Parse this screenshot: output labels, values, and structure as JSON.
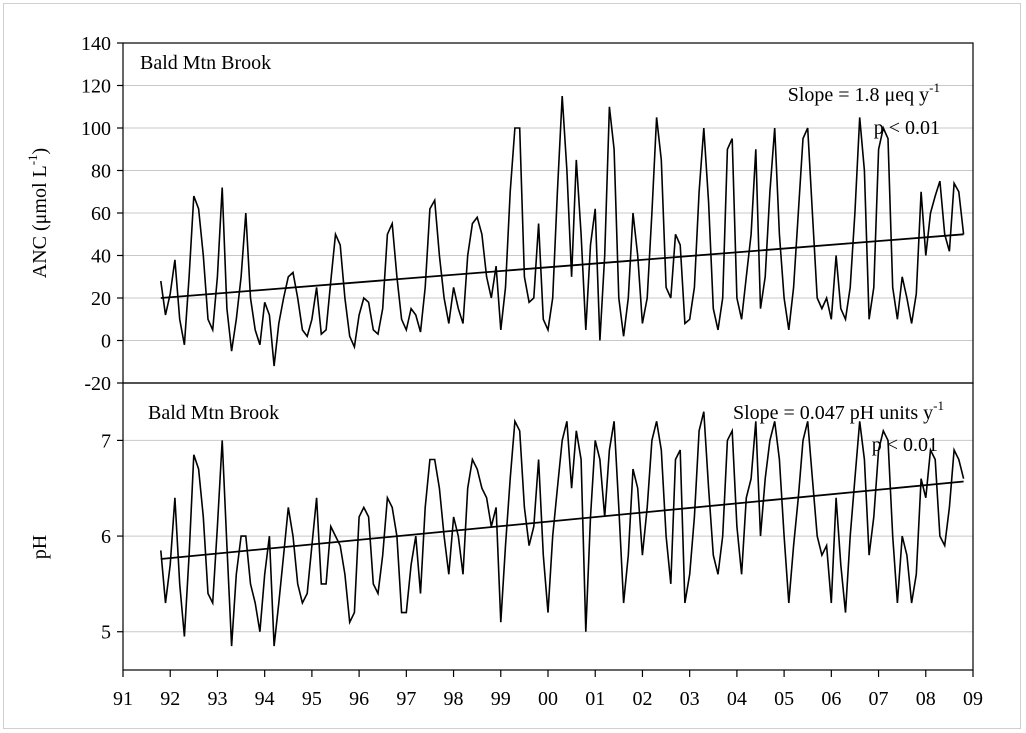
{
  "chart_data": [
    {
      "type": "line",
      "panel": "top",
      "site_label": "Bald Mtn Brook",
      "ylabel_main": "ANC (",
      "ylabel_mu": "μ",
      "ylabel_rest": "mol L",
      "ylabel_sup": "-1",
      "ylabel_end": ")",
      "slope_label": "Slope = 1.8 μeq y",
      "slope_sup": "-1",
      "p_label": "p < 0.01",
      "ylim": [
        -20,
        140
      ],
      "yticks": [
        "-20",
        "0",
        "20",
        "40",
        "60",
        "80",
        "100",
        "120",
        "140"
      ],
      "ytick_values": [
        -20,
        0,
        20,
        40,
        60,
        80,
        100,
        120,
        140
      ],
      "grid": true,
      "series": [
        {
          "x": [
            91.8,
            91.9,
            92.0,
            92.1,
            92.2,
            92.3,
            92.4,
            92.5,
            92.6,
            92.7,
            92.8,
            92.9,
            93.0,
            93.1,
            93.2,
            93.3,
            93.4,
            93.5,
            93.6,
            93.7,
            93.8,
            93.9,
            94.0,
            94.1,
            94.2,
            94.3,
            94.4,
            94.5,
            94.6,
            94.7,
            94.8,
            94.9,
            95.0,
            95.1,
            95.2,
            95.3,
            95.4,
            95.5,
            95.6,
            95.7,
            95.8,
            95.9,
            96.0,
            96.1,
            96.2,
            96.3,
            96.4,
            96.5,
            96.6,
            96.7,
            96.8,
            96.9,
            97.0,
            97.1,
            97.2,
            97.3,
            97.4,
            97.5,
            97.6,
            97.7,
            97.8,
            97.9,
            98.0,
            98.1,
            98.2,
            98.3,
            98.4,
            98.5,
            98.6,
            98.7,
            98.8,
            98.9,
            99.0,
            99.1,
            99.2,
            99.3,
            99.4,
            99.5,
            99.6,
            99.7,
            99.8,
            99.9,
            100.0,
            100.1,
            100.2,
            100.3,
            100.4,
            100.5,
            100.6,
            100.7,
            100.8,
            100.9,
            101.0,
            101.1,
            101.2,
            101.3,
            101.4,
            101.5,
            101.6,
            101.7,
            101.8,
            101.9,
            102.0,
            102.1,
            102.2,
            102.3,
            102.4,
            102.5,
            102.6,
            102.7,
            102.8,
            102.9,
            103.0,
            103.1,
            103.2,
            103.3,
            103.4,
            103.5,
            103.6,
            103.7,
            103.8,
            103.9,
            104.0,
            104.1,
            104.2,
            104.3,
            104.4,
            104.5,
            104.6,
            104.7,
            104.8,
            104.9,
            105.0,
            105.1,
            105.2,
            105.3,
            105.4,
            105.5,
            105.6,
            105.7,
            105.8,
            105.9,
            106.0,
            106.1,
            106.2,
            106.3,
            106.4,
            106.5,
            106.6,
            106.7,
            106.8,
            106.9,
            107.0,
            107.1,
            107.2,
            107.3,
            107.4,
            107.5,
            107.6,
            107.7,
            107.8,
            107.9,
            108.0,
            108.1,
            108.2,
            108.3,
            108.4,
            108.5,
            108.6,
            108.7,
            108.8
          ],
          "y": [
            28,
            12,
            22,
            38,
            10,
            -2,
            30,
            68,
            62,
            40,
            10,
            5,
            30,
            72,
            15,
            -5,
            10,
            30,
            60,
            20,
            5,
            -2,
            18,
            12,
            -12,
            8,
            20,
            30,
            32,
            20,
            5,
            2,
            10,
            25,
            3,
            5,
            28,
            50,
            45,
            20,
            2,
            -3,
            12,
            20,
            18,
            5,
            3,
            15,
            50,
            55,
            30,
            10,
            5,
            15,
            12,
            4,
            25,
            62,
            66,
            40,
            20,
            8,
            25,
            15,
            8,
            40,
            55,
            58,
            50,
            30,
            20,
            35,
            5,
            25,
            70,
            100,
            100,
            30,
            18,
            20,
            55,
            10,
            5,
            20,
            70,
            115,
            80,
            30,
            85,
            50,
            5,
            45,
            62,
            0,
            40,
            110,
            90,
            20,
            2,
            20,
            60,
            40,
            8,
            20,
            60,
            105,
            85,
            25,
            20,
            50,
            45,
            8,
            10,
            25,
            70,
            100,
            65,
            15,
            5,
            20,
            90,
            95,
            20,
            10,
            30,
            50,
            90,
            15,
            30,
            70,
            100,
            50,
            20,
            5,
            25,
            60,
            95,
            100,
            60,
            20,
            15,
            20,
            10,
            40,
            15,
            10,
            25,
            60,
            105,
            80,
            10,
            25,
            90,
            100,
            95,
            25,
            10,
            30,
            20,
            8,
            22,
            70,
            40,
            60,
            68,
            75,
            50,
            42,
            74,
            70,
            50
          ]
        },
        {
          "name": "",
          "x": [
            91.8,
            108.8
          ],
          "y": [
            20,
            50
          ]
        }
      ]
    },
    {
      "type": "line",
      "panel": "bottom",
      "site_label": "Bald Mtn Brook",
      "ylabel": "pH",
      "slope_label": "Slope = 0.047 pH units y",
      "slope_sup": "-1",
      "p_label": "p < 0.01",
      "ylim": [
        4.6,
        7.6
      ],
      "yticks": [
        "5",
        "6",
        "7"
      ],
      "ytick_values": [
        5,
        6,
        7
      ],
      "grid": true,
      "series": [
        {
          "x": [
            91.8,
            91.9,
            92.0,
            92.1,
            92.2,
            92.3,
            92.4,
            92.5,
            92.6,
            92.7,
            92.8,
            92.9,
            93.0,
            93.1,
            93.2,
            93.3,
            93.4,
            93.5,
            93.6,
            93.7,
            93.8,
            93.9,
            94.0,
            94.1,
            94.2,
            94.3,
            94.4,
            94.5,
            94.6,
            94.7,
            94.8,
            94.9,
            95.0,
            95.1,
            95.2,
            95.3,
            95.4,
            95.5,
            95.6,
            95.7,
            95.8,
            95.9,
            96.0,
            96.1,
            96.2,
            96.3,
            96.4,
            96.5,
            96.6,
            96.7,
            96.8,
            96.9,
            97.0,
            97.1,
            97.2,
            97.3,
            97.4,
            97.5,
            97.6,
            97.7,
            97.8,
            97.9,
            98.0,
            98.1,
            98.2,
            98.3,
            98.4,
            98.5,
            98.6,
            98.7,
            98.8,
            98.9,
            99.0,
            99.1,
            99.2,
            99.3,
            99.4,
            99.5,
            99.6,
            99.7,
            99.8,
            99.9,
            100.0,
            100.1,
            100.2,
            100.3,
            100.4,
            100.5,
            100.6,
            100.7,
            100.8,
            100.9,
            101.0,
            101.1,
            101.2,
            101.3,
            101.4,
            101.5,
            101.6,
            101.7,
            101.8,
            101.9,
            102.0,
            102.1,
            102.2,
            102.3,
            102.4,
            102.5,
            102.6,
            102.7,
            102.8,
            102.9,
            103.0,
            103.1,
            103.2,
            103.3,
            103.4,
            103.5,
            103.6,
            103.7,
            103.8,
            103.9,
            104.0,
            104.1,
            104.2,
            104.3,
            104.4,
            104.5,
            104.6,
            104.7,
            104.8,
            104.9,
            105.0,
            105.1,
            105.2,
            105.3,
            105.4,
            105.5,
            105.6,
            105.7,
            105.8,
            105.9,
            106.0,
            106.1,
            106.2,
            106.3,
            106.4,
            106.5,
            106.6,
            106.7,
            106.8,
            106.9,
            107.0,
            107.1,
            107.2,
            107.3,
            107.4,
            107.5,
            107.6,
            107.7,
            107.8,
            107.9,
            108.0,
            108.1,
            108.2,
            108.3,
            108.4,
            108.5,
            108.6,
            108.7,
            108.8
          ],
          "y": [
            5.85,
            5.3,
            5.7,
            6.4,
            5.5,
            4.95,
            5.8,
            6.85,
            6.7,
            6.2,
            5.4,
            5.3,
            6.1,
            7.0,
            5.9,
            4.85,
            5.6,
            6.0,
            6.0,
            5.5,
            5.3,
            5.0,
            5.6,
            6.0,
            4.85,
            5.3,
            5.8,
            6.3,
            6.0,
            5.5,
            5.3,
            5.4,
            5.9,
            6.4,
            5.5,
            5.5,
            6.1,
            6.0,
            5.9,
            5.6,
            5.1,
            5.2,
            6.2,
            6.3,
            6.2,
            5.5,
            5.4,
            5.8,
            6.4,
            6.3,
            6.0,
            5.2,
            5.2,
            5.7,
            6.0,
            5.4,
            6.3,
            6.8,
            6.8,
            6.5,
            6.0,
            5.6,
            6.2,
            6.0,
            5.6,
            6.5,
            6.8,
            6.7,
            6.5,
            6.4,
            6.1,
            6.3,
            5.1,
            5.9,
            6.6,
            7.2,
            7.1,
            6.3,
            5.9,
            6.1,
            6.8,
            5.8,
            5.2,
            6.0,
            6.5,
            7.0,
            7.2,
            6.5,
            7.1,
            6.8,
            5.0,
            6.2,
            7.0,
            6.8,
            6.2,
            6.9,
            7.2,
            6.3,
            5.3,
            5.8,
            6.7,
            6.5,
            5.8,
            6.3,
            7.0,
            7.2,
            6.9,
            6.0,
            5.5,
            6.8,
            6.9,
            5.3,
            5.6,
            6.2,
            7.1,
            7.3,
            6.5,
            5.8,
            5.6,
            6.0,
            7.0,
            7.1,
            6.1,
            5.6,
            6.4,
            6.6,
            7.2,
            6.0,
            6.6,
            7.0,
            7.2,
            6.8,
            6.0,
            5.3,
            5.9,
            6.4,
            7.0,
            7.2,
            6.6,
            6.0,
            5.8,
            5.9,
            5.3,
            6.4,
            5.7,
            5.2,
            6.0,
            6.6,
            7.2,
            6.8,
            5.8,
            6.2,
            6.9,
            7.1,
            7.0,
            6.0,
            5.3,
            6.0,
            5.8,
            5.3,
            5.6,
            6.6,
            6.4,
            6.9,
            6.8,
            6.0,
            5.9,
            6.3,
            6.9,
            6.8,
            6.6
          ]
        },
        {
          "name": "",
          "x": [
            91.8,
            108.8
          ],
          "y": [
            5.76,
            6.57
          ]
        }
      ]
    }
  ],
  "xaxis": {
    "xlim": [
      91,
      109
    ],
    "ticks": [
      "91",
      "92",
      "93",
      "94",
      "95",
      "96",
      "97",
      "98",
      "99",
      "00",
      "01",
      "02",
      "03",
      "04",
      "05",
      "06",
      "07",
      "08",
      "09"
    ],
    "tick_values": [
      91,
      92,
      93,
      94,
      95,
      96,
      97,
      98,
      99,
      100,
      101,
      102,
      103,
      104,
      105,
      106,
      107,
      108,
      109
    ]
  },
  "colors": {
    "line": "#000000",
    "grid": "#c8c8c8",
    "frame": "#d0d0d0"
  }
}
